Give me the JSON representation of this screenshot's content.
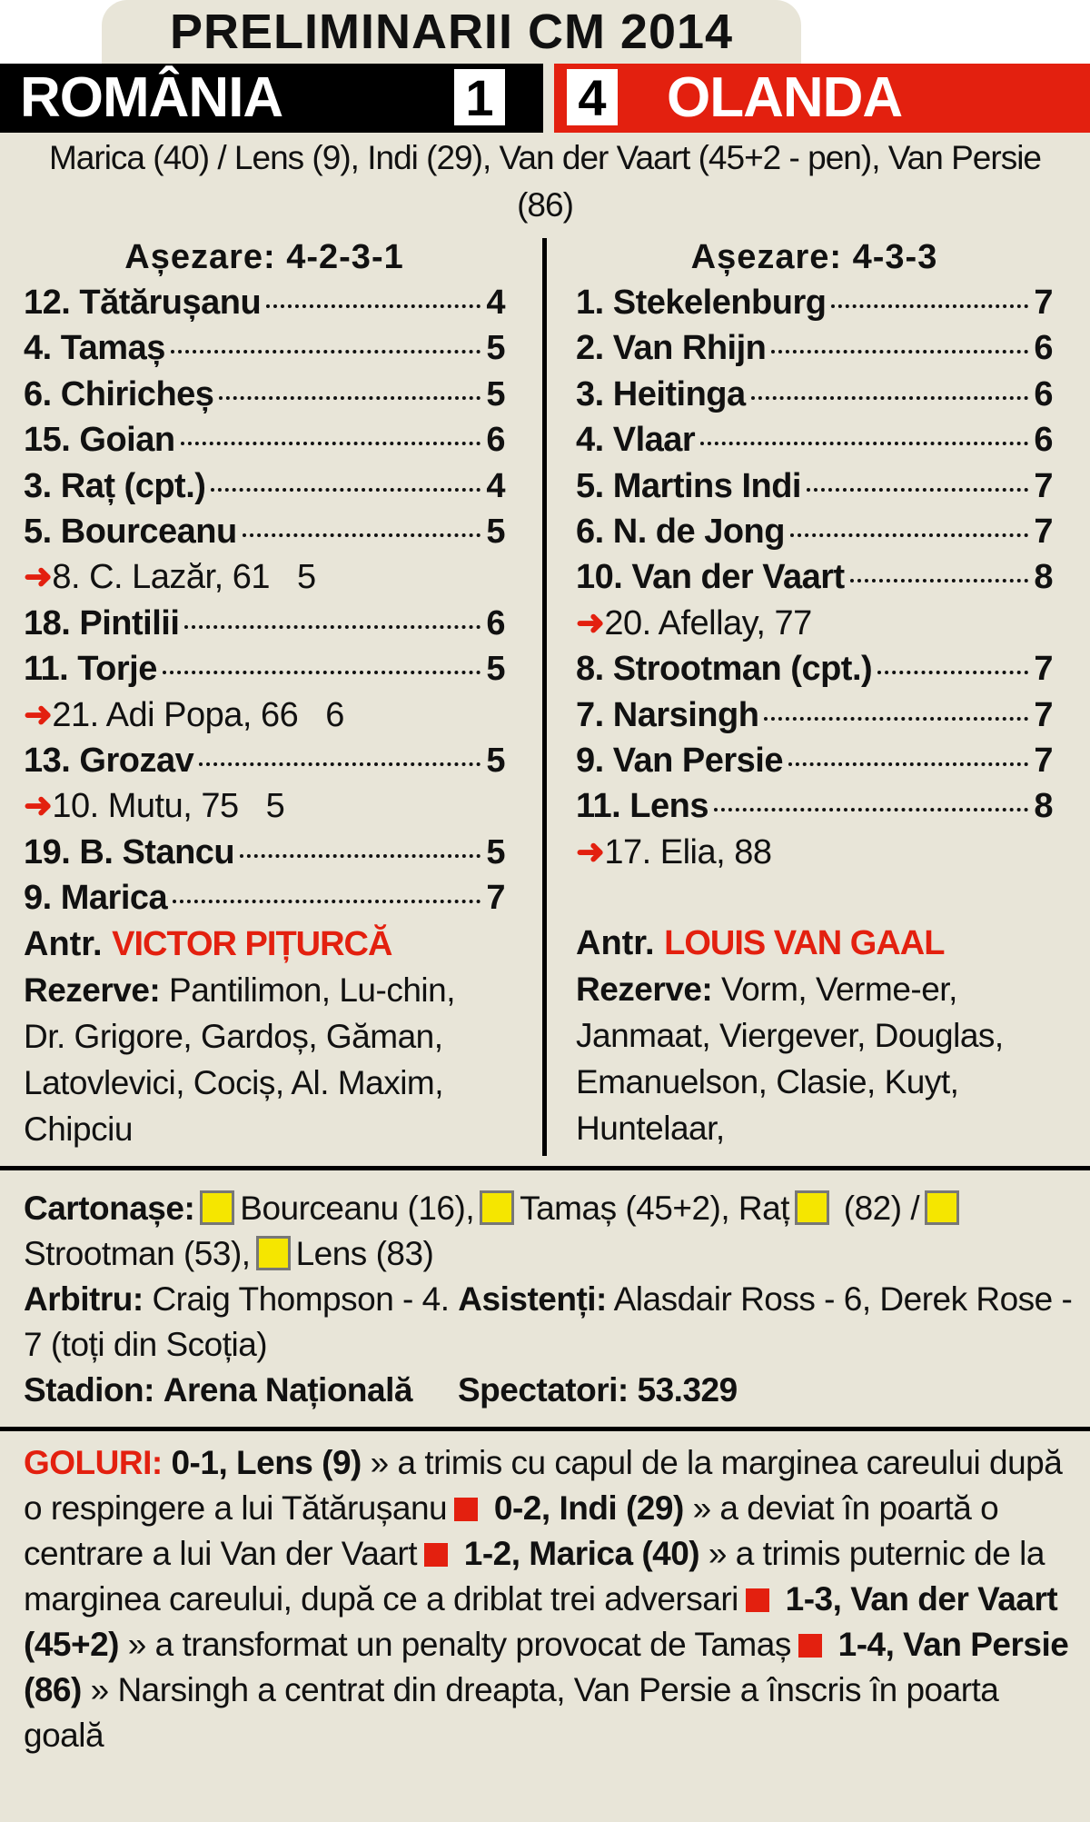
{
  "title": "PRELIMINARII CM 2014",
  "home": {
    "name": "ROMÂNIA",
    "score": "1"
  },
  "away": {
    "name": "OLANDA",
    "score": "4"
  },
  "colors": {
    "home_bar": "#000000",
    "away_bar": "#e3200f",
    "accent": "#e3200f",
    "yellow_card": "#f5e600",
    "background": "#e8e5d8"
  },
  "scorers": "Marica (40) / Lens (9), Indi (29), Van der Vaart (45+2 - pen), Van Persie (86)",
  "left": {
    "formation": "Așezare: 4-2-3-1",
    "players": [
      {
        "name": "12. Tătărușanu",
        "grade": "4",
        "sub": false
      },
      {
        "name": "4. Tamaș",
        "grade": "5",
        "sub": false
      },
      {
        "name": "6. Chiricheș",
        "grade": "5",
        "sub": false
      },
      {
        "name": "15. Goian",
        "grade": "6",
        "sub": false
      },
      {
        "name": "3. Raț (cpt.)",
        "grade": "4",
        "sub": false
      },
      {
        "name": "5. Bourceanu",
        "grade": "5",
        "sub": false
      },
      {
        "name": "8. C. Lazăr, 61",
        "grade": "5",
        "sub": true
      },
      {
        "name": "18. Pintilii",
        "grade": "6",
        "sub": false
      },
      {
        "name": "11. Torje",
        "grade": "5",
        "sub": false
      },
      {
        "name": "21. Adi Popa, 66",
        "grade": "6",
        "sub": true
      },
      {
        "name": "13. Grozav",
        "grade": "5",
        "sub": false
      },
      {
        "name": "10. Mutu, 75",
        "grade": "5",
        "sub": true
      },
      {
        "name": "19. B. Stancu",
        "grade": "5",
        "sub": false
      },
      {
        "name": "9. Marica",
        "grade": "7",
        "sub": false
      }
    ],
    "coach_label": "Antr.",
    "coach": "VICTOR PIȚURCĂ",
    "reserves_label": "Rezerve:",
    "reserves": "Pantilimon, Lu-chin, Dr. Grigore, Gardoș, Găman, Latovlevici, Cociș, Al. Maxim, Chipciu"
  },
  "right": {
    "formation": "Așezare: 4-3-3",
    "players": [
      {
        "name": "1. Stekelenburg",
        "grade": "7",
        "sub": false
      },
      {
        "name": "2. Van Rhijn",
        "grade": "6",
        "sub": false
      },
      {
        "name": "3. Heitinga",
        "grade": "6",
        "sub": false
      },
      {
        "name": "4. Vlaar",
        "grade": "6",
        "sub": false
      },
      {
        "name": "5. Martins Indi",
        "grade": "7",
        "sub": false
      },
      {
        "name": "6. N. de Jong",
        "grade": "7",
        "sub": false
      },
      {
        "name": "10. Van der Vaart",
        "grade": "8",
        "sub": false
      },
      {
        "name": "20. Afellay, 77",
        "grade": "",
        "sub": true
      },
      {
        "name": "8. Strootman (cpt.)",
        "grade": "7",
        "sub": false
      },
      {
        "name": "7. Narsingh",
        "grade": "7",
        "sub": false
      },
      {
        "name": "9. Van Persie",
        "grade": "7",
        "sub": false
      },
      {
        "name": "11. Lens",
        "grade": "8",
        "sub": false
      },
      {
        "name": "17. Elia, 88",
        "grade": "",
        "sub": true
      }
    ],
    "coach_label": "Antr.",
    "coach": "LOUIS VAN GAAL",
    "reserves_label": "Rezerve:",
    "reserves": "Vorm, Verme-er, Janmaat, Viergever, Douglas, Emanuelson, Clasie, Kuyt, Huntelaar,"
  },
  "info": {
    "cards_label": "Cartonașe:",
    "cards": [
      "Bourceanu (16),",
      "Tamaș (45+2), Raț",
      "(82) /",
      "Strootman (53),",
      "Lens (83)"
    ],
    "referee_label": "Arbitru:",
    "referee": "Craig Thompson - 4.",
    "assistants_label": "Asistenți:",
    "assistants": "Alasdair Ross - 6, Derek Rose - 7 (toți din Scoția)",
    "stadium_label": "Stadion:",
    "stadium": "Arena Națională",
    "spectators_label": "Spectatori:",
    "spectators": "53.329"
  },
  "goals": {
    "label": "GOLURI:",
    "items": [
      {
        "score": "0-1, Lens (9)",
        "desc": "» a trimis cu capul de la marginea careului după o respingere a lui Tătărușanu"
      },
      {
        "score": "0-2, Indi (29)",
        "desc": "» a deviat în poartă o centrare a lui Van der Vaart"
      },
      {
        "score": "1-2, Marica (40)",
        "desc": "» a trimis puternic de la marginea careului, după ce a driblat trei adversari"
      },
      {
        "score": "1-3, Van der Vaart (45+2)",
        "desc": "» a transformat un penalty provocat de Tamaș"
      },
      {
        "score": "1-4, Van Persie (86)",
        "desc": "» Narsingh a centrat din dreapta, Van Persie a înscris în poarta goală"
      }
    ]
  }
}
